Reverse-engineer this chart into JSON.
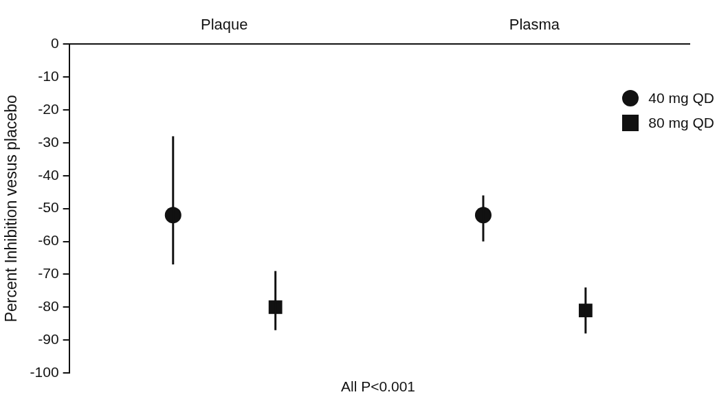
{
  "chart_data": {
    "type": "scatter",
    "categories": [
      "Plaque",
      "Plasma"
    ],
    "ylabel": "Percent Inhibition vesus placebo",
    "ylim": [
      -100,
      0
    ],
    "yticks": [
      0,
      -10,
      -20,
      -30,
      -40,
      -50,
      -60,
      -70,
      -80,
      -90,
      -100
    ],
    "grid": false,
    "legend": "top right",
    "annotations": [
      "All P<0.001"
    ],
    "series": [
      {
        "name": "40 mg QD",
        "color": "#111111",
        "marker": "circle",
        "values": [
          -52,
          -52
        ],
        "errors": [
          [
            -67,
            -28
          ],
          [
            -60,
            -46
          ]
        ]
      },
      {
        "name": "80 mg QD",
        "color": "#111111",
        "marker": "square",
        "values": [
          -80,
          -81
        ],
        "errors": [
          [
            -87,
            -69
          ],
          [
            -88,
            -74
          ]
        ]
      }
    ]
  }
}
